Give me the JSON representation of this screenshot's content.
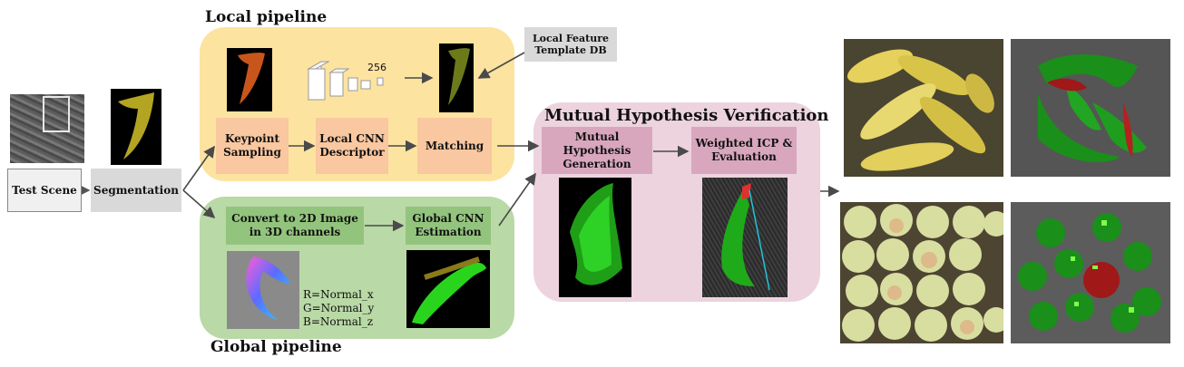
{
  "local": {
    "title": "Local pipeline",
    "keypoint": "Keypoint Sampling",
    "descriptor": "Local CNN Descriptor",
    "matching": "Matching",
    "template_db": "Local Feature Template DB",
    "dim_label": "256"
  },
  "global": {
    "title": "Global pipeline",
    "convert": "Convert to 2D Image in 3D channels",
    "estimation": "Global CNN Estimation",
    "channels": [
      "R=Normal_x",
      "G=Normal_y",
      "B=Normal_z"
    ]
  },
  "input": {
    "test_scene": "Test Scene",
    "segmentation": "Segmentation"
  },
  "mhv": {
    "title": "Mutual Hypothesis Verification",
    "generation": "Mutual Hypothesis Generation",
    "icp": "Weighted ICP & Evaluation"
  },
  "colors": {
    "local_panel": "#fde3a0",
    "global_panel": "#b9d9a6",
    "mhv_panel": "#ecd3de",
    "local_box": "#f9c7a0",
    "global_box": "#93c47d",
    "mhv_box": "#d8a7bd",
    "gray_box": "#d9d9d9"
  }
}
